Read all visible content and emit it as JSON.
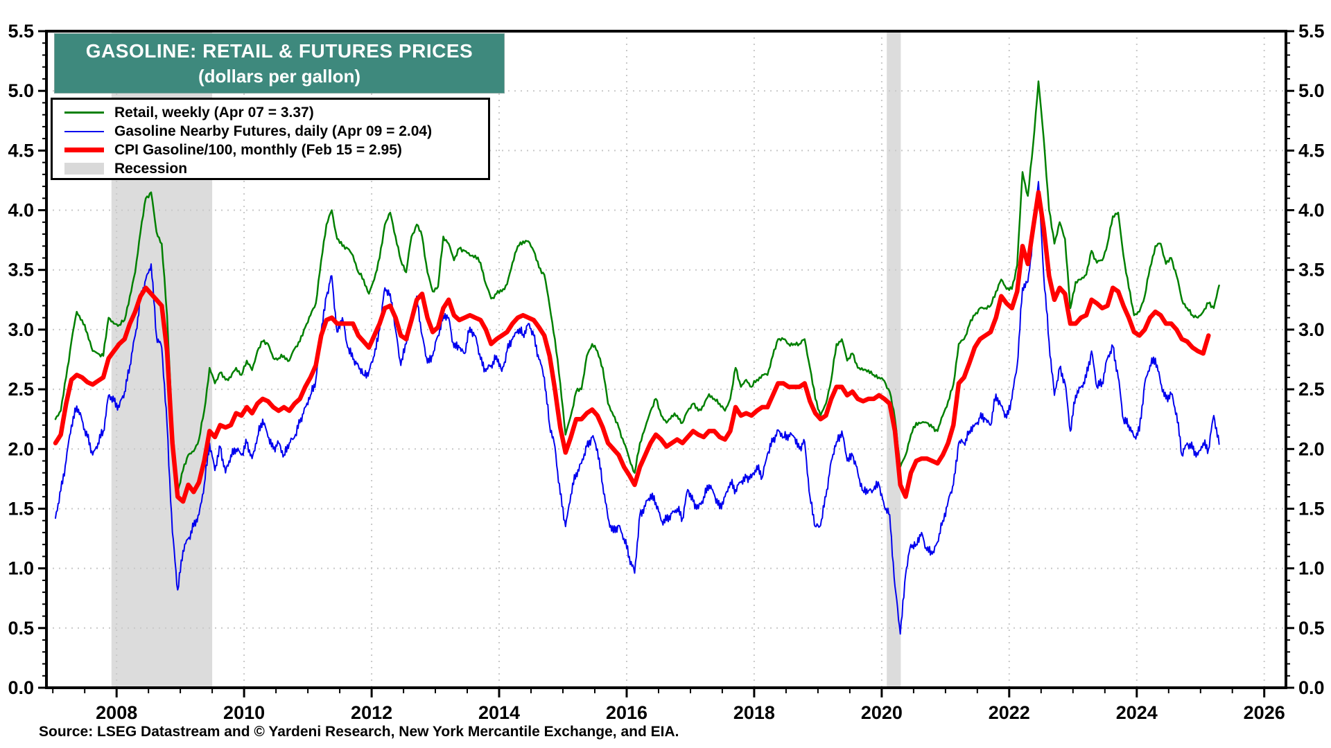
{
  "title": {
    "line1": "GASOLINE: RETAIL & FUTURES PRICES",
    "line2": "(dollars per gallon)"
  },
  "source": "Source: LSEG Datastream and © Yardeni Research, New York Mercantile Exchange, and EIA.",
  "legend": [
    {
      "label": "Retail, weekly (Apr 07 = 3.37)",
      "swatch": "line",
      "color": "#008000",
      "thickness": 3
    },
    {
      "label": "Gasoline Nearby Futures, daily (Apr 09 = 2.04)",
      "swatch": "line",
      "color": "#0000EE",
      "thickness": 2
    },
    {
      "label": "CPI Gasoline/100, monthly (Feb 15 = 2.95)",
      "swatch": "line",
      "color": "#FF0000",
      "thickness": 7
    },
    {
      "label": "Recession",
      "swatch": "rect",
      "color": "#D9D9D9"
    }
  ],
  "chart_data": {
    "type": "line",
    "title": "GASOLINE: RETAIL & FUTURES PRICES (dollars per gallon)",
    "xlabel": "",
    "ylabel": "dollars per gallon",
    "x_axis": {
      "range": [
        2006.9,
        2026.34
      ],
      "tick_labels": [
        "2008",
        "2010",
        "2012",
        "2014",
        "2016",
        "2018",
        "2020",
        "2022",
        "2024",
        "2026"
      ],
      "minor_tick_step_years": 0.5
    },
    "y_axis": {
      "range": [
        0.0,
        5.5
      ],
      "tick_labels": [
        "0.0",
        "0.5",
        "1.0",
        "1.5",
        "2.0",
        "2.5",
        "3.0",
        "3.5",
        "4.0",
        "4.5",
        "5.0",
        "5.5"
      ],
      "minor_tick_step": 0.1,
      "sides": "both"
    },
    "grid": {
      "style": "dotted",
      "color": "#C8C8C8",
      "h_lines": [
        0.5,
        1.0,
        1.5,
        2.0,
        2.5,
        3.0,
        3.5,
        4.0,
        4.5,
        5.0
      ],
      "v_lines_years": [
        2008,
        2010,
        2012,
        2014,
        2016,
        2018,
        2020,
        2022,
        2024,
        2026
      ]
    },
    "recession_color": "#DCDCDC",
    "recessions": [
      [
        2007.92,
        2009.5
      ],
      [
        2020.08,
        2020.3
      ]
    ],
    "series_start_month": "2007-01",
    "series_frequency": "monthly",
    "series": [
      {
        "id": "retail",
        "name": "Retail, weekly",
        "latest": "Apr 07 = 3.37",
        "color": "#008000",
        "width": 2.5,
        "noise": 0.022,
        "upsample": 4,
        "values": [
          2.25,
          2.32,
          2.6,
          2.9,
          3.15,
          3.08,
          2.97,
          2.82,
          2.8,
          2.78,
          3.1,
          3.05,
          3.04,
          3.08,
          3.28,
          3.48,
          3.82,
          4.1,
          4.15,
          3.82,
          3.72,
          3.12,
          2.18,
          1.64,
          1.82,
          1.95,
          1.98,
          2.08,
          2.32,
          2.68,
          2.55,
          2.64,
          2.58,
          2.6,
          2.68,
          2.62,
          2.74,
          2.66,
          2.82,
          2.9,
          2.88,
          2.76,
          2.76,
          2.78,
          2.74,
          2.84,
          2.9,
          3.02,
          3.12,
          3.22,
          3.58,
          3.88,
          4.0,
          3.76,
          3.7,
          3.68,
          3.62,
          3.48,
          3.42,
          3.3,
          3.42,
          3.6,
          3.88,
          3.98,
          3.78,
          3.58,
          3.48,
          3.78,
          3.88,
          3.78,
          3.48,
          3.32,
          3.36,
          3.78,
          3.72,
          3.58,
          3.68,
          3.66,
          3.62,
          3.62,
          3.56,
          3.38,
          3.26,
          3.3,
          3.32,
          3.38,
          3.56,
          3.7,
          3.74,
          3.74,
          3.66,
          3.52,
          3.46,
          3.2,
          2.92,
          2.55,
          2.12,
          2.28,
          2.48,
          2.5,
          2.78,
          2.88,
          2.82,
          2.68,
          2.38,
          2.28,
          2.18,
          2.05,
          1.92,
          1.8,
          2.05,
          2.18,
          2.32,
          2.42,
          2.28,
          2.22,
          2.28,
          2.28,
          2.22,
          2.32,
          2.38,
          2.32,
          2.36,
          2.46,
          2.42,
          2.38,
          2.32,
          2.42,
          2.68,
          2.52,
          2.58,
          2.52,
          2.58,
          2.62,
          2.62,
          2.78,
          2.92,
          2.92,
          2.88,
          2.88,
          2.88,
          2.92,
          2.68,
          2.42,
          2.28,
          2.38,
          2.58,
          2.88,
          2.92,
          2.74,
          2.8,
          2.68,
          2.66,
          2.66,
          2.62,
          2.6,
          2.57,
          2.48,
          2.25,
          1.85,
          1.95,
          2.12,
          2.22,
          2.22,
          2.22,
          2.18,
          2.15,
          2.28,
          2.4,
          2.54,
          2.88,
          2.92,
          3.04,
          3.12,
          3.18,
          3.18,
          3.2,
          3.32,
          3.42,
          3.34,
          3.34,
          3.54,
          4.32,
          4.12,
          4.55,
          5.08,
          4.6,
          4.0,
          3.72,
          3.9,
          3.76,
          3.18,
          3.4,
          3.42,
          3.46,
          3.66,
          3.56,
          3.58,
          3.72,
          3.95,
          3.98,
          3.62,
          3.35,
          3.12,
          3.15,
          3.28,
          3.52,
          3.7,
          3.72,
          3.55,
          3.6,
          3.45,
          3.25,
          3.18,
          3.12,
          3.1,
          3.15,
          3.22,
          3.18,
          3.37
        ]
      },
      {
        "id": "futures",
        "name": "Gasoline Nearby Futures, daily",
        "latest": "Apr 09 = 2.04",
        "color": "#0000EE",
        "width": 2,
        "noise": 0.05,
        "upsample": 6,
        "values": [
          1.42,
          1.65,
          1.9,
          2.2,
          2.36,
          2.24,
          2.1,
          1.95,
          2.05,
          2.15,
          2.45,
          2.4,
          2.35,
          2.48,
          2.7,
          2.95,
          3.25,
          3.42,
          3.55,
          2.95,
          2.85,
          2.2,
          1.3,
          0.82,
          1.15,
          1.25,
          1.35,
          1.45,
          1.7,
          2.05,
          1.82,
          2.02,
          1.8,
          1.95,
          2.0,
          1.95,
          2.05,
          1.92,
          2.1,
          2.25,
          2.1,
          2.0,
          2.05,
          1.95,
          2.05,
          2.1,
          2.22,
          2.35,
          2.45,
          2.58,
          2.98,
          3.28,
          3.45,
          2.98,
          3.1,
          2.85,
          2.75,
          2.7,
          2.62,
          2.65,
          2.78,
          3.0,
          3.35,
          3.3,
          3.0,
          2.7,
          2.88,
          3.05,
          3.28,
          2.95,
          2.72,
          2.78,
          2.95,
          3.12,
          3.1,
          2.85,
          2.85,
          2.8,
          3.02,
          2.95,
          2.75,
          2.65,
          2.7,
          2.78,
          2.65,
          2.82,
          2.92,
          3.0,
          2.96,
          3.05,
          2.95,
          2.75,
          2.6,
          2.2,
          2.02,
          1.62,
          1.35,
          1.62,
          1.8,
          1.88,
          2.02,
          2.1,
          2.0,
          1.7,
          1.42,
          1.3,
          1.36,
          1.25,
          1.1,
          0.96,
          1.45,
          1.52,
          1.62,
          1.55,
          1.4,
          1.4,
          1.46,
          1.5,
          1.42,
          1.66,
          1.56,
          1.5,
          1.6,
          1.7,
          1.62,
          1.5,
          1.6,
          1.72,
          1.66,
          1.72,
          1.76,
          1.76,
          1.86,
          1.76,
          1.96,
          2.06,
          2.16,
          2.1,
          2.12,
          2.1,
          2.0,
          2.06,
          1.6,
          1.35,
          1.36,
          1.6,
          1.9,
          2.06,
          2.15,
          1.9,
          1.95,
          1.8,
          1.65,
          1.65,
          1.66,
          1.7,
          1.52,
          1.45,
          0.85,
          0.45,
          0.95,
          1.2,
          1.2,
          1.3,
          1.15,
          1.12,
          1.22,
          1.4,
          1.56,
          1.7,
          2.05,
          2.05,
          2.15,
          2.2,
          2.26,
          2.25,
          2.2,
          2.46,
          2.36,
          2.26,
          2.42,
          2.7,
          3.35,
          3.4,
          3.78,
          4.24,
          3.45,
          2.9,
          2.45,
          2.68,
          2.55,
          2.15,
          2.45,
          2.52,
          2.6,
          2.82,
          2.52,
          2.56,
          2.76,
          2.86,
          2.6,
          2.25,
          2.2,
          2.1,
          2.15,
          2.55,
          2.7,
          2.76,
          2.55,
          2.42,
          2.46,
          2.3,
          1.95,
          2.05,
          2.0,
          1.95,
          2.05,
          2.0,
          2.28,
          2.04
        ]
      },
      {
        "id": "cpi",
        "name": "CPI Gasoline/100, monthly",
        "latest": "Feb 15 = 2.95",
        "color": "#FF0000",
        "width": 6.5,
        "noise": 0,
        "upsample": 2,
        "values": [
          2.05,
          2.12,
          2.38,
          2.58,
          2.62,
          2.6,
          2.56,
          2.54,
          2.57,
          2.6,
          2.76,
          2.82,
          2.88,
          2.92,
          3.05,
          3.15,
          3.28,
          3.35,
          3.3,
          3.25,
          3.2,
          2.82,
          2.05,
          1.6,
          1.56,
          1.7,
          1.64,
          1.72,
          1.9,
          2.15,
          2.1,
          2.2,
          2.18,
          2.2,
          2.3,
          2.28,
          2.35,
          2.3,
          2.38,
          2.42,
          2.4,
          2.35,
          2.32,
          2.35,
          2.32,
          2.38,
          2.42,
          2.52,
          2.6,
          2.7,
          2.95,
          3.08,
          3.1,
          3.05,
          3.05,
          3.05,
          3.05,
          2.95,
          2.9,
          2.85,
          2.95,
          3.05,
          3.18,
          3.2,
          3.1,
          2.95,
          2.92,
          3.08,
          3.25,
          3.3,
          3.1,
          2.98,
          3.02,
          3.18,
          3.25,
          3.12,
          3.08,
          3.1,
          3.12,
          3.1,
          3.08,
          3.0,
          2.88,
          2.92,
          2.95,
          2.98,
          3.05,
          3.1,
          3.12,
          3.1,
          3.08,
          3.02,
          2.95,
          2.78,
          2.5,
          2.18,
          1.97,
          2.1,
          2.25,
          2.25,
          2.3,
          2.33,
          2.28,
          2.18,
          2.05,
          2.0,
          1.95,
          1.85,
          1.78,
          1.7,
          1.85,
          1.95,
          2.05,
          2.12,
          2.08,
          2.02,
          2.05,
          2.08,
          2.05,
          2.1,
          2.15,
          2.12,
          2.1,
          2.15,
          2.15,
          2.1,
          2.08,
          2.15,
          2.35,
          2.28,
          2.3,
          2.28,
          2.32,
          2.35,
          2.35,
          2.45,
          2.55,
          2.55,
          2.52,
          2.52,
          2.52,
          2.55,
          2.4,
          2.3,
          2.25,
          2.28,
          2.42,
          2.52,
          2.52,
          2.45,
          2.48,
          2.42,
          2.4,
          2.42,
          2.42,
          2.45,
          2.42,
          2.38,
          2.15,
          1.7,
          1.6,
          1.8,
          1.9,
          1.92,
          1.92,
          1.9,
          1.88,
          1.95,
          2.05,
          2.2,
          2.55,
          2.6,
          2.72,
          2.85,
          2.92,
          2.95,
          2.98,
          3.1,
          3.28,
          3.22,
          3.18,
          3.32,
          3.7,
          3.55,
          3.85,
          4.15,
          3.85,
          3.45,
          3.25,
          3.35,
          3.3,
          3.05,
          3.05,
          3.1,
          3.12,
          3.25,
          3.22,
          3.18,
          3.2,
          3.35,
          3.32,
          3.2,
          3.1,
          2.98,
          2.95,
          3.0,
          3.1,
          3.15,
          3.12,
          3.05,
          3.05,
          3.0,
          2.92,
          2.9,
          2.85,
          2.82,
          2.8,
          2.95
        ]
      }
    ]
  }
}
